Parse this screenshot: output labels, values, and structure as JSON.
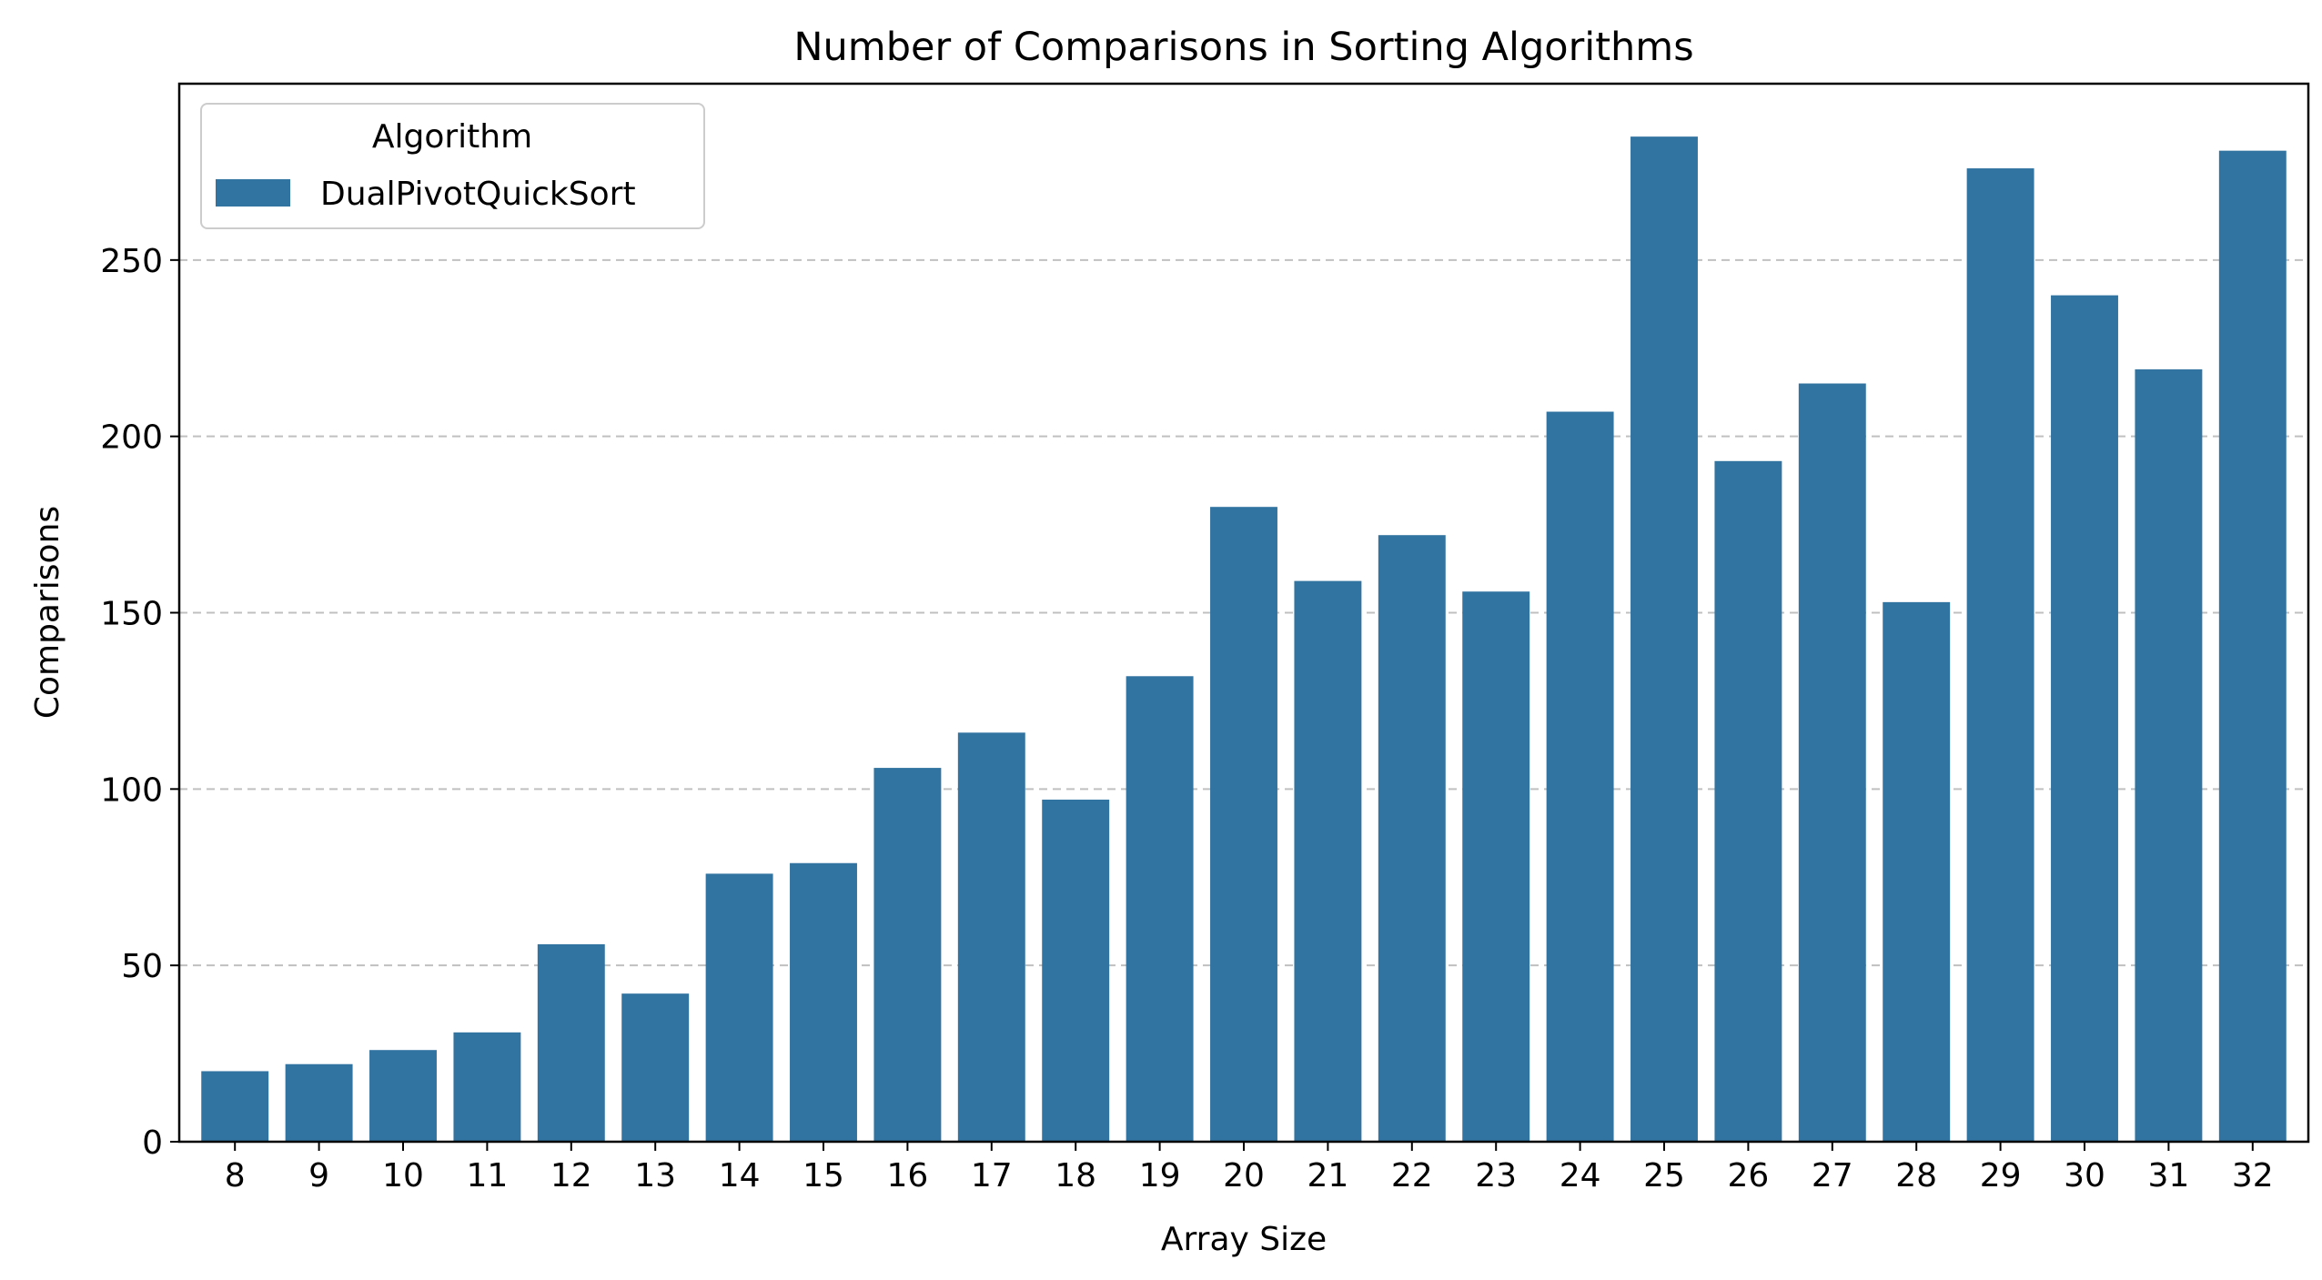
{
  "chart_data": {
    "type": "bar",
    "title": "Number of Comparisons in Sorting Algorithms",
    "xlabel": "Array Size",
    "ylabel": "Comparisons",
    "categories": [
      "8",
      "9",
      "10",
      "11",
      "12",
      "13",
      "14",
      "15",
      "16",
      "17",
      "18",
      "19",
      "20",
      "21",
      "22",
      "23",
      "24",
      "25",
      "26",
      "27",
      "28",
      "29",
      "30",
      "31",
      "32"
    ],
    "series": [
      {
        "name": "DualPivotQuickSort",
        "color": "#3274a1",
        "values": [
          20,
          22,
          26,
          31,
          56,
          42,
          76,
          79,
          106,
          116,
          97,
          132,
          180,
          159,
          172,
          156,
          207,
          285,
          193,
          215,
          153,
          276,
          240,
          219,
          281
        ]
      }
    ],
    "ylim": [
      0,
      300
    ],
    "yticks": [
      0,
      50,
      100,
      150,
      200,
      250
    ],
    "grid": {
      "y": true,
      "style": "dashed",
      "color": "#c0c0c0"
    },
    "legend": {
      "title": "Algorithm",
      "placement": "top-left"
    }
  }
}
